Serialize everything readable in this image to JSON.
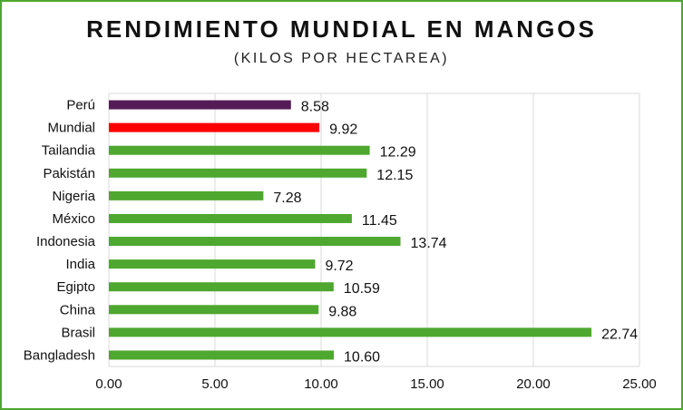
{
  "chart_data": {
    "type": "bar",
    "orientation": "horizontal",
    "title": "RENDIMIENTO MUNDIAL EN MANGOS",
    "subtitle": "(KILOS POR HECTAREA)",
    "categories": [
      "Perú",
      "Mundial",
      "Tailandia",
      "Pakistán",
      "Nigeria",
      "México",
      "Indonesia",
      "India",
      "Egipto",
      "China",
      "Brasil",
      "Bangladesh"
    ],
    "values": [
      8.58,
      9.92,
      12.29,
      12.15,
      7.28,
      11.45,
      13.74,
      9.72,
      10.59,
      9.88,
      22.74,
      10.6
    ],
    "data_labels": [
      "8.58",
      "9.92",
      "12.29",
      "12.15",
      "7.28",
      "11.45",
      "13.74",
      "9.72",
      "10.59",
      "9.88",
      "22.74",
      "10.60"
    ],
    "colors": [
      "#541b57",
      "#ff0000",
      "#4ea72e",
      "#4ea72e",
      "#4ea72e",
      "#4ea72e",
      "#4ea72e",
      "#4ea72e",
      "#4ea72e",
      "#4ea72e",
      "#4ea72e",
      "#4ea72e"
    ],
    "xlim": [
      0,
      25
    ],
    "xticks": [
      "0.00",
      "5.00",
      "10.00",
      "15.00",
      "20.00",
      "25.00"
    ],
    "xlabel": "",
    "ylabel": "",
    "grid": true,
    "legend": "none"
  },
  "colors": {
    "border": "#4ea72e",
    "grid": "#d9d9d9",
    "default_bar": "#4ea72e",
    "peru_bar": "#541b57",
    "world_bar": "#ff0000"
  }
}
